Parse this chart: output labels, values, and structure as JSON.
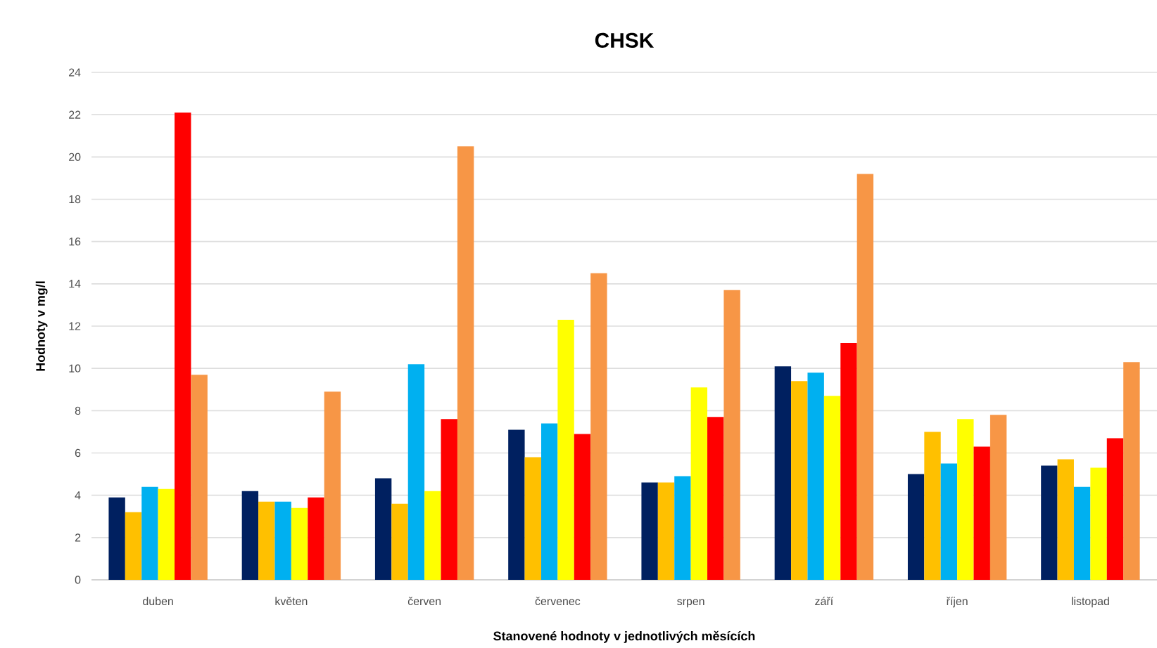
{
  "chart_data": {
    "type": "bar",
    "title": "CHSK",
    "xlabel": "Stanovené hodnoty v jednotlivých měsících",
    "ylabel": "Hodnoty v mg/l",
    "categories": [
      "duben",
      "květen",
      "červen",
      "červenec",
      "srpen",
      "září",
      "říjen",
      "listopad"
    ],
    "series": [
      {
        "color": "#002060",
        "values": [
          3.9,
          4.2,
          4.8,
          7.1,
          4.6,
          10.1,
          5.0,
          5.4
        ]
      },
      {
        "color": "#ffc000",
        "values": [
          3.2,
          3.7,
          3.6,
          5.8,
          4.6,
          9.4,
          7.0,
          5.7
        ]
      },
      {
        "color": "#00b0f0",
        "values": [
          4.4,
          3.7,
          10.2,
          7.4,
          4.9,
          9.8,
          5.5,
          4.4
        ]
      },
      {
        "color": "#ffff00",
        "values": [
          4.3,
          3.4,
          4.2,
          12.3,
          9.1,
          8.7,
          7.6,
          5.3
        ]
      },
      {
        "color": "#ff0000",
        "values": [
          22.1,
          3.9,
          7.6,
          6.9,
          7.7,
          11.2,
          6.3,
          6.7
        ]
      },
      {
        "color": "#f79646",
        "values": [
          9.7,
          8.9,
          20.5,
          14.5,
          13.7,
          19.2,
          7.8,
          10.3
        ]
      }
    ],
    "ylim": [
      0,
      24
    ],
    "yticks": [
      0,
      2,
      4,
      6,
      8,
      10,
      12,
      14,
      16,
      18,
      20,
      22,
      24
    ],
    "grid": "y"
  }
}
